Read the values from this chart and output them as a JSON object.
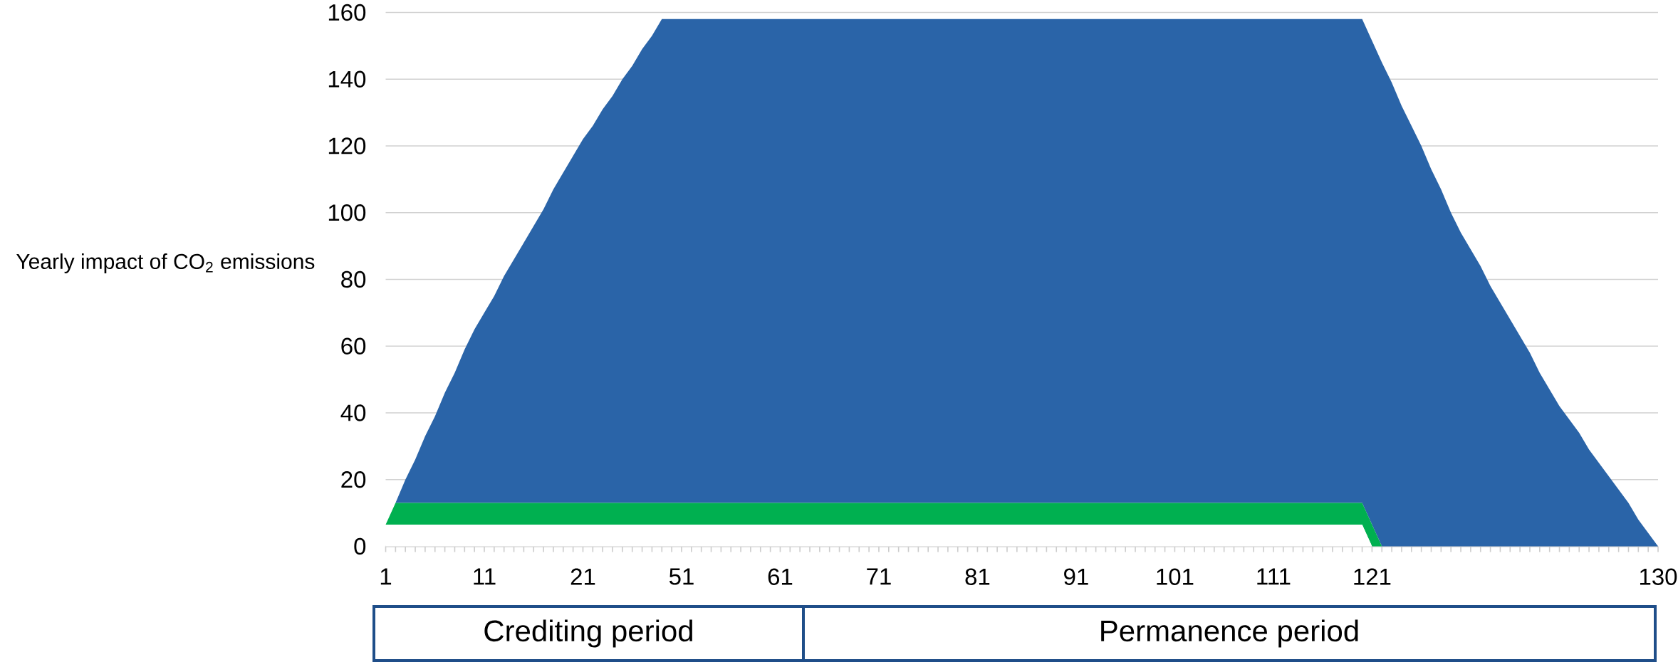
{
  "chart_data": {
    "type": "area",
    "stacked": true,
    "ylabel": "Yearly impact of CO$_{2}$ emissions",
    "categories": [
      "1",
      null,
      null,
      null,
      null,
      null,
      null,
      null,
      null,
      null,
      "11",
      null,
      null,
      null,
      null,
      null,
      null,
      null,
      null,
      null,
      "21",
      null,
      null,
      null,
      null,
      null,
      null,
      null,
      null,
      null,
      "51",
      null,
      null,
      null,
      null,
      null,
      null,
      null,
      null,
      null,
      "61",
      null,
      null,
      null,
      null,
      null,
      null,
      null,
      null,
      null,
      "71",
      null,
      null,
      null,
      null,
      null,
      null,
      null,
      null,
      null,
      "81",
      null,
      null,
      null,
      null,
      null,
      null,
      null,
      null,
      null,
      "91",
      null,
      null,
      null,
      null,
      null,
      null,
      null,
      null,
      null,
      "101",
      null,
      null,
      null,
      null,
      null,
      null,
      null,
      null,
      null,
      "111",
      null,
      null,
      null,
      null,
      null,
      null,
      null,
      null,
      null,
      "121",
      null,
      null,
      null,
      null,
      null,
      null,
      null,
      null,
      null,
      null,
      null,
      null,
      null,
      null,
      null,
      null,
      null,
      null,
      null,
      null,
      null,
      null,
      null,
      null,
      null,
      null,
      null,
      null,
      "130"
    ],
    "series": [
      {
        "color": "#ffffff",
        "values": [
          6.5,
          6.5,
          6.5,
          6.5,
          6.5,
          6.5,
          6.5,
          6.5,
          6.5,
          6.5,
          6.5,
          6.5,
          6.5,
          6.5,
          6.5,
          6.5,
          6.5,
          6.5,
          6.5,
          6.5,
          6.5,
          6.5,
          6.5,
          6.5,
          6.5,
          6.5,
          6.5,
          6.5,
          6.5,
          6.5,
          6.5,
          6.5,
          6.5,
          6.5,
          6.5,
          6.5,
          6.5,
          6.5,
          6.5,
          6.5,
          6.5,
          6.5,
          6.5,
          6.5,
          6.5,
          6.5,
          6.5,
          6.5,
          6.5,
          6.5,
          6.5,
          6.5,
          6.5,
          6.5,
          6.5,
          6.5,
          6.5,
          6.5,
          6.5,
          6.5,
          6.5,
          6.5,
          6.5,
          6.5,
          6.5,
          6.5,
          6.5,
          6.5,
          6.5,
          6.5,
          6.5,
          6.5,
          6.5,
          6.5,
          6.5,
          6.5,
          6.5,
          6.5,
          6.5,
          6.5,
          6.5,
          6.5,
          6.5,
          6.5,
          6.5,
          6.5,
          6.5,
          6.5,
          6.5,
          6.5,
          6.5,
          6.5,
          6.5,
          6.5,
          6.5,
          6.5,
          6.5,
          6.5,
          6.5,
          6.5,
          0,
          0,
          0,
          0,
          0,
          0,
          0,
          0,
          0,
          0,
          0,
          0,
          0,
          0,
          0,
          0,
          0,
          0,
          0,
          0,
          0,
          0,
          0,
          0,
          0,
          0,
          0,
          0,
          0,
          0
        ]
      },
      {
        "color": "#00b050",
        "values": [
          0,
          6.5,
          6.5,
          6.5,
          6.5,
          6.5,
          6.5,
          6.5,
          6.5,
          6.5,
          6.5,
          6.5,
          6.5,
          6.5,
          6.5,
          6.5,
          6.5,
          6.5,
          6.5,
          6.5,
          6.5,
          6.5,
          6.5,
          6.5,
          6.5,
          6.5,
          6.5,
          6.5,
          6.5,
          6.5,
          6.5,
          6.5,
          6.5,
          6.5,
          6.5,
          6.5,
          6.5,
          6.5,
          6.5,
          6.5,
          6.5,
          6.5,
          6.5,
          6.5,
          6.5,
          6.5,
          6.5,
          6.5,
          6.5,
          6.5,
          6.5,
          6.5,
          6.5,
          6.5,
          6.5,
          6.5,
          6.5,
          6.5,
          6.5,
          6.5,
          6.5,
          6.5,
          6.5,
          6.5,
          6.5,
          6.5,
          6.5,
          6.5,
          6.5,
          6.5,
          6.5,
          6.5,
          6.5,
          6.5,
          6.5,
          6.5,
          6.5,
          6.5,
          6.5,
          6.5,
          6.5,
          6.5,
          6.5,
          6.5,
          6.5,
          6.5,
          6.5,
          6.5,
          6.5,
          6.5,
          6.5,
          6.5,
          6.5,
          6.5,
          6.5,
          6.5,
          6.5,
          6.5,
          6.5,
          6.5,
          6.5,
          0,
          0,
          0,
          0,
          0,
          0,
          0,
          0,
          0,
          0,
          0,
          0,
          0,
          0,
          0,
          0,
          0,
          0,
          0,
          0,
          0,
          0,
          0,
          0,
          0,
          0,
          0,
          0,
          0
        ]
      },
      {
        "color": "#2a64a8",
        "values": [
          0,
          0,
          7,
          13,
          20,
          26,
          33,
          39,
          46,
          52,
          57,
          62,
          68,
          73,
          78,
          83,
          88,
          94,
          99,
          104,
          109,
          113,
          118,
          122,
          127,
          131,
          136,
          140,
          145,
          145,
          145,
          145,
          145,
          145,
          145,
          145,
          145,
          145,
          145,
          145,
          145,
          145,
          145,
          145,
          145,
          145,
          145,
          145,
          145,
          145,
          145,
          145,
          145,
          145,
          145,
          145,
          145,
          145,
          145,
          145,
          145,
          145,
          145,
          145,
          145,
          145,
          145,
          145,
          145,
          145,
          145,
          145,
          145,
          145,
          145,
          145,
          145,
          145,
          145,
          145,
          145,
          145,
          145,
          145,
          145,
          145,
          145,
          145,
          145,
          145,
          145,
          145,
          145,
          145,
          145,
          145,
          145,
          145,
          145,
          145,
          145,
          145,
          139,
          132,
          126,
          120,
          113,
          107,
          100,
          94,
          89,
          84,
          78,
          73,
          68,
          63,
          58,
          52,
          47,
          42,
          38,
          34,
          29,
          25,
          21,
          17,
          13,
          8,
          4,
          0
        ]
      }
    ],
    "ylim": [
      0,
      160
    ],
    "yticks": [
      0,
      20,
      40,
      60,
      80,
      100,
      120,
      140,
      160
    ],
    "grid": "y",
    "annotations": [
      "Crediting period",
      "Permanence period"
    ]
  }
}
